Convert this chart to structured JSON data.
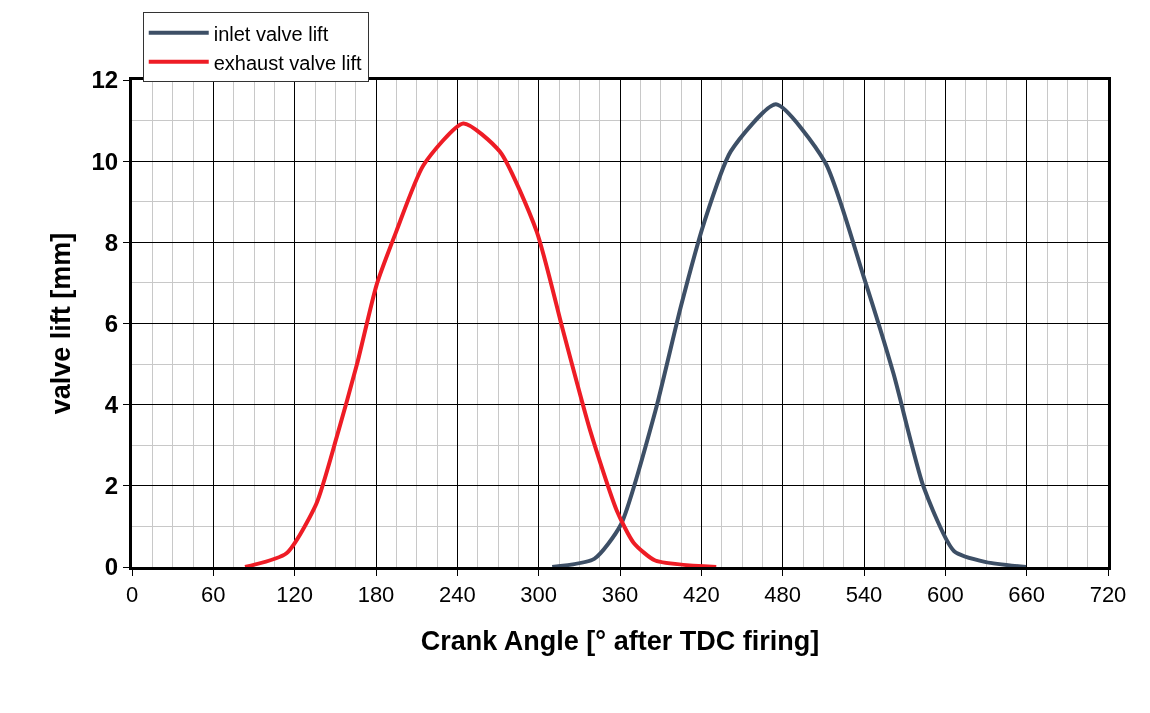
{
  "chart_data": {
    "type": "line",
    "xlabel": "Crank Angle [° after TDC firing]",
    "ylabel": "valve lift [mm]",
    "xlim": [
      0,
      720
    ],
    "xticks": [
      0,
      60,
      120,
      180,
      240,
      300,
      360,
      420,
      480,
      540,
      600,
      660,
      720
    ],
    "ylim": [
      0,
      12
    ],
    "yticks": [
      0,
      2,
      4,
      6,
      8,
      10,
      12
    ],
    "grid": true,
    "legend": "top left",
    "marker": "none",
    "line_style": "solid",
    "series": [
      {
        "name": "inlet valve lift",
        "color": "#3d4f66",
        "x": [
          310,
          341,
          360.6,
          386,
          405,
          422,
          441.7,
          475,
          511.5,
          539.5,
          561.8,
          584,
          606.5,
          630,
          659.5
        ],
        "values": [
          0,
          0.2,
          1.04,
          3.83,
          6.43,
          8.48,
          10.24,
          11.4,
          9.96,
          7.18,
          4.76,
          1.97,
          0.39,
          0.12,
          0
        ]
      },
      {
        "name": "exhaust valve lift",
        "color": "#ee1c25",
        "x": [
          83.4,
          114,
          136,
          151,
          166,
          180.5,
          195,
          215,
          244.4,
          271.5,
          298.5,
          318,
          338,
          357.5,
          370,
          386,
          431
        ],
        "values": [
          0,
          0.34,
          1.56,
          3.2,
          5,
          6.96,
          8.27,
          9.9,
          10.93,
          10.23,
          8.27,
          5.82,
          3.36,
          1.4,
          0.6,
          0.16,
          0
        ]
      }
    ]
  }
}
